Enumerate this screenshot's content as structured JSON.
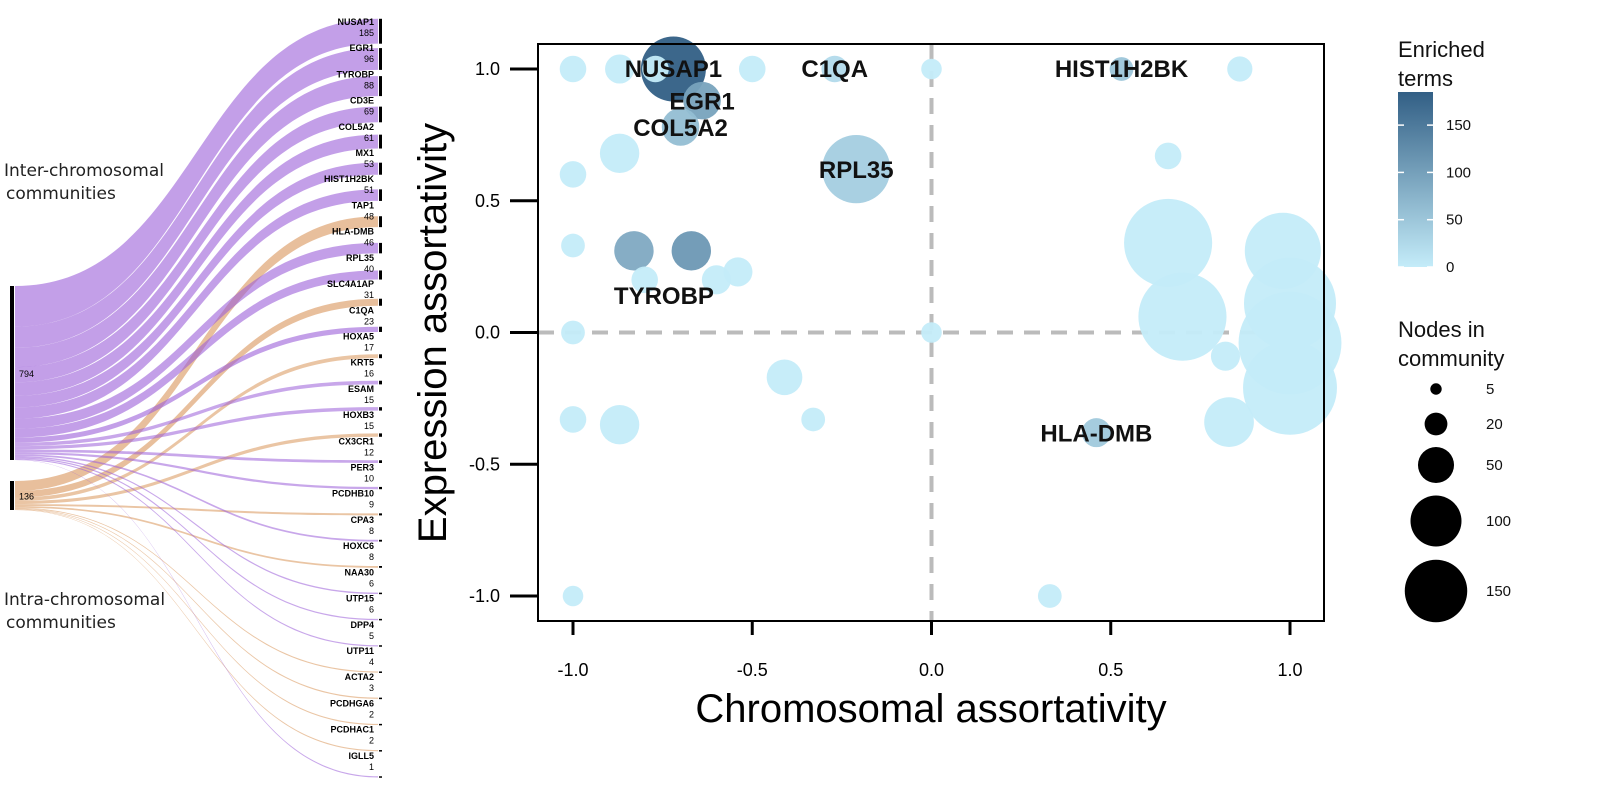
{
  "left_panel": {
    "inter_label": [
      "Inter-chromosomal",
      "communities"
    ],
    "intra_label": [
      "Intra-chromosomal",
      "communities"
    ],
    "colors": {
      "inter": "#9b5fd9",
      "intra": "#d9955a"
    },
    "sources": [
      {
        "id": "inter",
        "count": "794"
      },
      {
        "id": "intra",
        "count": "136"
      }
    ],
    "targets": [
      {
        "name": "NUSAP1",
        "count": "185",
        "source": "inter"
      },
      {
        "name": "EGR1",
        "count": "96",
        "source": "inter"
      },
      {
        "name": "TYROBP",
        "count": "88",
        "source": "inter"
      },
      {
        "name": "CD3E",
        "count": "69",
        "source": "inter"
      },
      {
        "name": "COL5A2",
        "count": "61",
        "source": "inter"
      },
      {
        "name": "MX1",
        "count": "53",
        "source": "inter"
      },
      {
        "name": "HIST1H2BK",
        "count": "51",
        "source": "inter"
      },
      {
        "name": "TAP1",
        "count": "48",
        "source": "intra"
      },
      {
        "name": "HLA-DMB",
        "count": "46",
        "source": "inter"
      },
      {
        "name": "RPL35",
        "count": "40",
        "source": "inter"
      },
      {
        "name": "SLC4A1AP",
        "count": "31",
        "source": "intra"
      },
      {
        "name": "C1QA",
        "count": "23",
        "source": "inter"
      },
      {
        "name": "HOXA5",
        "count": "17",
        "source": "intra"
      },
      {
        "name": "KRT5",
        "count": "16",
        "source": "inter"
      },
      {
        "name": "ESAM",
        "count": "15",
        "source": "inter"
      },
      {
        "name": "HOXB3",
        "count": "15",
        "source": "intra"
      },
      {
        "name": "CX3CR1",
        "count": "12",
        "source": "inter"
      },
      {
        "name": "PER3",
        "count": "10",
        "source": "inter"
      },
      {
        "name": "PCDHB10",
        "count": "9",
        "source": "intra"
      },
      {
        "name": "CPA3",
        "count": "8",
        "source": "inter"
      },
      {
        "name": "HOXC6",
        "count": "8",
        "source": "intra"
      },
      {
        "name": "NAA30",
        "count": "6",
        "source": "inter"
      },
      {
        "name": "UTP15",
        "count": "6",
        "source": "inter"
      },
      {
        "name": "DPP4",
        "count": "5",
        "source": "inter"
      },
      {
        "name": "UTP11",
        "count": "4",
        "source": "intra"
      },
      {
        "name": "ACTA2",
        "count": "3",
        "source": "intra"
      },
      {
        "name": "PCDHGA6",
        "count": "2",
        "source": "intra"
      },
      {
        "name": "PCDHAC1",
        "count": "2",
        "source": "intra"
      },
      {
        "name": "IGLL5",
        "count": "1",
        "source": "inter"
      }
    ]
  },
  "chart_data": {
    "type": "scatter",
    "xlabel": "Chromosomal assortativity",
    "ylabel": "Expression assortativity",
    "xlim": [
      -1.1,
      1.1
    ],
    "ylim": [
      -1.1,
      1.1
    ],
    "xticks": [
      "-1.0",
      "-0.5",
      "0.0",
      "0.5",
      "1.0"
    ],
    "yticks": [
      "-1.0",
      "-0.5",
      "0.0",
      "0.5",
      "1.0"
    ],
    "reference_lines": {
      "x": 0,
      "y": 0
    },
    "color_scale": {
      "low": "#c4ecf9",
      "high": "#325f85",
      "min": 0,
      "max": 185
    },
    "points": [
      {
        "x": -1.0,
        "y": 1.0,
        "nodes": 10,
        "terms": 0,
        "label": ""
      },
      {
        "x": -0.87,
        "y": 1.0,
        "nodes": 12,
        "terms": 0,
        "label": ""
      },
      {
        "x": -0.77,
        "y": 1.0,
        "nodes": 10,
        "terms": 0,
        "label": ""
      },
      {
        "x": -0.72,
        "y": 1.0,
        "nodes": 60,
        "terms": 185,
        "label": "NUSAP1"
      },
      {
        "x": -0.5,
        "y": 1.0,
        "nodes": 10,
        "terms": 0,
        "label": ""
      },
      {
        "x": -0.27,
        "y": 1.0,
        "nodes": 10,
        "terms": 23,
        "label": "C1QA"
      },
      {
        "x": 0.0,
        "y": 1.0,
        "nodes": 6,
        "terms": 0,
        "label": ""
      },
      {
        "x": 0.53,
        "y": 1.0,
        "nodes": 8,
        "terms": 51,
        "label": "HIST1H2BK"
      },
      {
        "x": 0.86,
        "y": 1.0,
        "nodes": 9,
        "terms": 0,
        "label": ""
      },
      {
        "x": -0.64,
        "y": 0.88,
        "nodes": 20,
        "terms": 96,
        "label": "EGR1"
      },
      {
        "x": -0.7,
        "y": 0.78,
        "nodes": 20,
        "terms": 61,
        "label": "COL5A2"
      },
      {
        "x": -0.87,
        "y": 0.68,
        "nodes": 22,
        "terms": 0,
        "label": ""
      },
      {
        "x": -1.0,
        "y": 0.6,
        "nodes": 10,
        "terms": 0,
        "label": ""
      },
      {
        "x": 0.66,
        "y": 0.67,
        "nodes": 10,
        "terms": 0,
        "label": ""
      },
      {
        "x": -0.21,
        "y": 0.62,
        "nodes": 66,
        "terms": 40,
        "label": "RPL35"
      },
      {
        "x": -1.0,
        "y": 0.33,
        "nodes": 8,
        "terms": 0,
        "label": ""
      },
      {
        "x": -0.83,
        "y": 0.31,
        "nodes": 22,
        "terms": 88,
        "label": "TYROBP"
      },
      {
        "x": -0.67,
        "y": 0.31,
        "nodes": 22,
        "terms": 110,
        "label": ""
      },
      {
        "x": 0.66,
        "y": 0.34,
        "nodes": 110,
        "terms": 0,
        "label": ""
      },
      {
        "x": 0.98,
        "y": 0.31,
        "nodes": 82,
        "terms": 0,
        "label": ""
      },
      {
        "x": -0.54,
        "y": 0.23,
        "nodes": 12,
        "terms": 0,
        "label": ""
      },
      {
        "x": -0.6,
        "y": 0.2,
        "nodes": 12,
        "terms": 0,
        "label": ""
      },
      {
        "x": -0.8,
        "y": 0.2,
        "nodes": 10,
        "terms": 0,
        "label": ""
      },
      {
        "x": 1.0,
        "y": 0.11,
        "nodes": 120,
        "terms": 0,
        "label": ""
      },
      {
        "x": 0.7,
        "y": 0.06,
        "nodes": 110,
        "terms": 0,
        "label": ""
      },
      {
        "x": -1.0,
        "y": 0.0,
        "nodes": 8,
        "terms": 0,
        "label": ""
      },
      {
        "x": 0.0,
        "y": 0.0,
        "nodes": 6,
        "terms": 0,
        "label": ""
      },
      {
        "x": 1.0,
        "y": -0.04,
        "nodes": 150,
        "terms": 0,
        "label": ""
      },
      {
        "x": 0.82,
        "y": -0.09,
        "nodes": 12,
        "terms": 0,
        "label": ""
      },
      {
        "x": -0.41,
        "y": -0.17,
        "nodes": 18,
        "terms": 0,
        "label": ""
      },
      {
        "x": 1.0,
        "y": -0.21,
        "nodes": 125,
        "terms": 0,
        "label": ""
      },
      {
        "x": -1.0,
        "y": -0.33,
        "nodes": 10,
        "terms": 0,
        "label": ""
      },
      {
        "x": -0.87,
        "y": -0.35,
        "nodes": 22,
        "terms": 0,
        "label": ""
      },
      {
        "x": -0.33,
        "y": -0.33,
        "nodes": 8,
        "terms": 0,
        "label": ""
      },
      {
        "x": 0.83,
        "y": -0.34,
        "nodes": 35,
        "terms": 0,
        "label": ""
      },
      {
        "x": 0.46,
        "y": -0.38,
        "nodes": 12,
        "terms": 46,
        "label": "HLA-DMB"
      },
      {
        "x": -1.0,
        "y": -1.0,
        "nodes": 6,
        "terms": 0,
        "label": ""
      },
      {
        "x": 0.33,
        "y": -1.0,
        "nodes": 8,
        "terms": 0,
        "label": ""
      }
    ]
  },
  "legend": {
    "color_title": [
      "Enriched",
      "terms"
    ],
    "color_ticks": [
      {
        "value": 0,
        "label": "0"
      },
      {
        "value": 50,
        "label": "50"
      },
      {
        "value": 100,
        "label": "100"
      },
      {
        "value": 150,
        "label": "150"
      }
    ],
    "size_title": [
      "Nodes in",
      "community"
    ],
    "size_entries": [
      {
        "value": 5,
        "label": "5"
      },
      {
        "value": 20,
        "label": "20"
      },
      {
        "value": 50,
        "label": "50"
      },
      {
        "value": 100,
        "label": "100"
      },
      {
        "value": 150,
        "label": "150"
      }
    ]
  }
}
